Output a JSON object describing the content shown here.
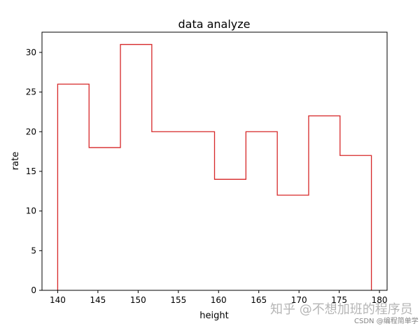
{
  "chart_data": {
    "type": "step-histogram",
    "title": "data analyze",
    "xlabel": "height",
    "ylabel": "rate",
    "xlim": [
      138.05,
      180.95
    ],
    "ylim": [
      0,
      32.55
    ],
    "xticks": [
      140,
      145,
      150,
      155,
      160,
      165,
      170,
      175,
      180
    ],
    "yticks": [
      0,
      5,
      10,
      15,
      20,
      25,
      30
    ],
    "bin_edges": [
      140,
      143.9,
      147.8,
      151.7,
      155.6,
      159.5,
      163.4,
      167.3,
      171.2,
      175.1,
      179
    ],
    "counts": [
      26,
      18,
      31,
      20,
      20,
      14,
      20,
      12,
      22,
      17
    ],
    "series_color": "#d62728",
    "grid": false
  },
  "watermark": {
    "line1": "知乎 @不想加班的程序员",
    "line2": "CSDN @编程简单学"
  }
}
